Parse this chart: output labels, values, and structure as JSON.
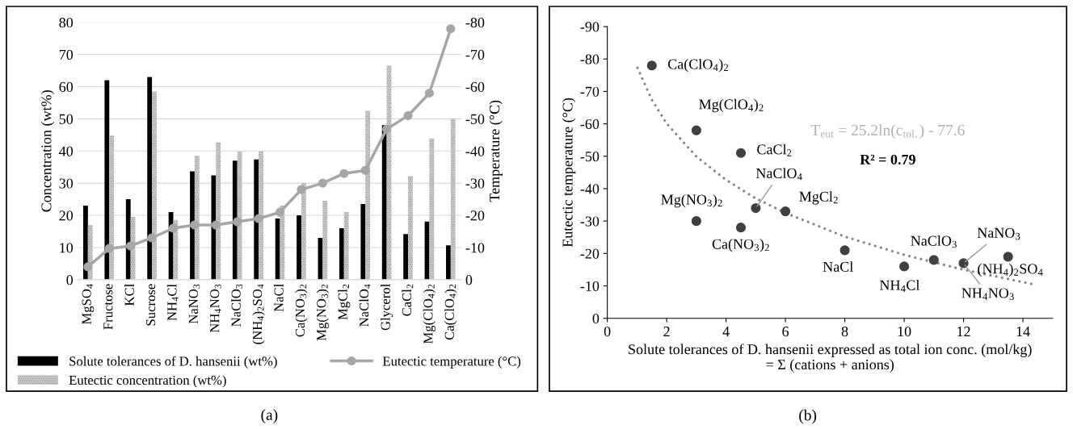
{
  "chart_data": [
    {
      "type": "bar",
      "ylabel": "Concentration (wt%)",
      "y2label": "Temperature (°C)",
      "categories": [
        "MgSO$_{4}$",
        "Fructose",
        "KCl",
        "Sucrose",
        "NH$_{4}$Cl",
        "NaNO$_{3}$",
        "NH$_{4}$NO$_{3}$",
        "NaClO$_{3}$",
        "(NH$_{4}$)$_{2}$SO$_{4}$",
        "NaCl",
        "Ca(NO$_{3}$)$_{2}$",
        "Mg(NO$_{3}$)$_{2}$",
        "MgCl$_{2}$",
        "NaClO$_{4}$",
        "Glycerol",
        "CaCl$_{2}$",
        "Mg(ClO$_{4}$)$_{2}$",
        "Ca(ClO$_{4}$)$_{2}$"
      ],
      "series": [
        {
          "name": "Solute tolerances of D. hansenii (wt%)",
          "color": "#000000",
          "values": [
            23,
            62,
            25,
            63,
            21,
            33.7,
            32.4,
            37,
            37.4,
            19,
            20,
            13,
            16,
            23.5,
            48,
            14.2,
            18.1,
            10.7
          ]
        },
        {
          "name": "Eutectic concentration (wt%)",
          "color": "#d0d0d0",
          "values": [
            17,
            44.8,
            19.5,
            58.5,
            18.6,
            38.5,
            42.7,
            39.8,
            40,
            23,
            30,
            24.5,
            21,
            52.5,
            66.6,
            32.2,
            43.9,
            50
          ]
        },
        {
          "name": "Eutectic temperature (°C)",
          "type": "line",
          "axis": "y2",
          "color": "#a6a6a6",
          "marker": "circle",
          "values": [
            -4,
            -9.7,
            -10.5,
            -13,
            -16,
            -17,
            -17,
            -18,
            -19,
            -21,
            -28,
            -30,
            -33,
            -34,
            -46.8,
            -51,
            -58,
            -78
          ]
        }
      ],
      "ylim": [
        0,
        80
      ],
      "yticks": [
        0,
        10,
        20,
        30,
        40,
        50,
        60,
        70,
        80
      ],
      "y2lim": [
        0,
        -80
      ],
      "y2ticks": [
        0,
        -10,
        -20,
        -30,
        -40,
        -50,
        -60,
        -70,
        -80
      ],
      "grid": "y",
      "legend": "bottom",
      "annotations": [
        "(a)"
      ]
    },
    {
      "type": "scatter",
      "xlabel": "Solute tolerances of D. hansenii expressed as total ion conc. (mol/kg)\n= Σ (cations + anions)",
      "ylabel": "Eutectic temperature (°C)",
      "series": [
        {
          "color": "#404040",
          "marker": "circle",
          "x": [
            1.5,
            3,
            4.5,
            5,
            6,
            3,
            4.5,
            8,
            10,
            11,
            12,
            13.5
          ],
          "values": [
            -78,
            -58,
            -51,
            -34,
            -33,
            -30,
            -28,
            -21,
            -16,
            -18,
            -17,
            -19
          ]
        },
        {
          "type": "line",
          "color": "#808080",
          "line_style": "dotted",
          "x": [
            1,
            1.5,
            2,
            3,
            4,
            5,
            6,
            8,
            10,
            12,
            14.4
          ],
          "values": [
            -77.6,
            -67.4,
            -60.1,
            -49.9,
            -42.7,
            -37.0,
            -32.5,
            -25.2,
            -19.6,
            -15.0,
            -10.4
          ]
        }
      ],
      "xlim": [
        0,
        15
      ],
      "xticks": [
        0,
        2,
        4,
        6,
        8,
        10,
        12,
        14
      ],
      "ylim": [
        0,
        -90
      ],
      "yticks": [
        0,
        -10,
        -20,
        -30,
        -40,
        -50,
        -60,
        -70,
        -80,
        -90
      ],
      "grid": false,
      "legend": false,
      "annotations": [
        {
          "text": "Ca(ClO$_{4}$)$_{2}$",
          "x": 1.5,
          "y": -78
        },
        {
          "text": "Mg(ClO$_{4}$)$_{2}$",
          "x": 3,
          "y": -58
        },
        {
          "text": "CaCl$_{2}$",
          "x": 4.5,
          "y": -51
        },
        {
          "text": "NaClO$_{4}$",
          "x": 5,
          "y": -34
        },
        {
          "text": "MgCl$_{2}$",
          "x": 6,
          "y": -33
        },
        {
          "text": "Mg(NO$_{3}$)$_{2}$",
          "x": 3,
          "y": -30
        },
        {
          "text": "Ca(NO$_{3}$)$_{2}$",
          "x": 4.5,
          "y": -28
        },
        {
          "text": "NaCl",
          "x": 8,
          "y": -21
        },
        {
          "text": "NH$_{4}$Cl",
          "x": 10,
          "y": -16
        },
        {
          "text": "NaClO$_{3}$",
          "x": 11,
          "y": -18
        },
        {
          "text": "NaNO$_{3}$",
          "x": 12,
          "y": -17
        },
        {
          "text": "NH$_{4}$NO$_{3}$",
          "x": 12,
          "y": -17
        },
        {
          "text": "(NH$_{4}$)$_{2}$SO$_{4}$",
          "x": 13.5,
          "y": -19
        },
        "T$_{eut}$ = 25.2ln(c$_{tol.}$) - 77.6",
        "R² = 0.79",
        "(b)"
      ]
    }
  ]
}
